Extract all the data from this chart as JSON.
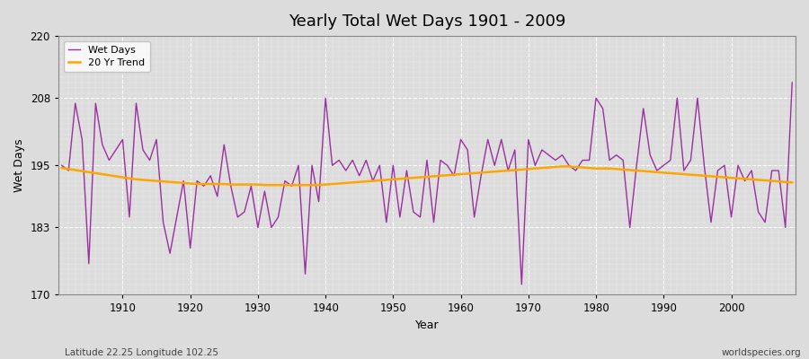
{
  "title": "Yearly Total Wet Days 1901 - 2009",
  "xlabel": "Year",
  "ylabel": "Wet Days",
  "footnote_left": "Latitude 22.25 Longitude 102.25",
  "footnote_right": "worldspecies.org",
  "line_color": "#9B30A0",
  "trend_color": "#FFA500",
  "background_color": "#DCDCDC",
  "fig_background": "#DCDCDC",
  "ylim": [
    170,
    220
  ],
  "yticks": [
    170,
    183,
    195,
    208,
    220
  ],
  "xlim_left": 1900.5,
  "xlim_right": 2009.5,
  "years": [
    1901,
    1902,
    1903,
    1904,
    1905,
    1906,
    1907,
    1908,
    1909,
    1910,
    1911,
    1912,
    1913,
    1914,
    1915,
    1916,
    1917,
    1918,
    1919,
    1920,
    1921,
    1922,
    1923,
    1924,
    1925,
    1926,
    1927,
    1928,
    1929,
    1930,
    1931,
    1932,
    1933,
    1934,
    1935,
    1936,
    1937,
    1938,
    1939,
    1940,
    1941,
    1942,
    1943,
    1944,
    1945,
    1946,
    1947,
    1948,
    1949,
    1950,
    1951,
    1952,
    1953,
    1954,
    1955,
    1956,
    1957,
    1958,
    1959,
    1960,
    1961,
    1962,
    1963,
    1964,
    1965,
    1966,
    1967,
    1968,
    1969,
    1970,
    1971,
    1972,
    1973,
    1974,
    1975,
    1976,
    1977,
    1978,
    1979,
    1980,
    1981,
    1982,
    1983,
    1984,
    1985,
    1986,
    1987,
    1988,
    1989,
    1990,
    1991,
    1992,
    1993,
    1994,
    1995,
    1996,
    1997,
    1998,
    1999,
    2000,
    2001,
    2002,
    2003,
    2004,
    2005,
    2006,
    2007,
    2008,
    2009
  ],
  "wet_days": [
    195,
    194,
    207,
    200,
    176,
    207,
    199,
    196,
    198,
    200,
    185,
    207,
    198,
    196,
    200,
    184,
    178,
    185,
    192,
    179,
    192,
    191,
    193,
    189,
    199,
    191,
    185,
    186,
    191,
    183,
    190,
    183,
    185,
    192,
    191,
    195,
    174,
    195,
    188,
    208,
    195,
    196,
    194,
    196,
    193,
    196,
    192,
    195,
    184,
    195,
    185,
    194,
    186,
    185,
    196,
    184,
    196,
    195,
    193,
    200,
    198,
    185,
    193,
    200,
    195,
    200,
    194,
    198,
    172,
    200,
    195,
    198,
    197,
    196,
    197,
    195,
    194,
    196,
    196,
    208,
    206,
    196,
    197,
    196,
    183,
    195,
    206,
    197,
    194,
    195,
    196,
    208,
    194,
    196,
    208,
    195,
    184,
    194,
    195,
    185,
    195,
    192,
    194,
    186,
    184,
    194,
    194,
    183,
    211
  ],
  "trend": [
    194.5,
    194.3,
    194.1,
    193.9,
    193.7,
    193.5,
    193.3,
    193.1,
    192.9,
    192.7,
    192.5,
    192.3,
    192.2,
    192.1,
    192.0,
    191.9,
    191.8,
    191.7,
    191.6,
    191.5,
    191.4,
    191.4,
    191.4,
    191.4,
    191.4,
    191.3,
    191.3,
    191.3,
    191.3,
    191.3,
    191.2,
    191.2,
    191.2,
    191.2,
    191.2,
    191.2,
    191.2,
    191.2,
    191.2,
    191.3,
    191.4,
    191.5,
    191.6,
    191.7,
    191.8,
    191.9,
    192.0,
    192.1,
    192.2,
    192.3,
    192.4,
    192.5,
    192.6,
    192.7,
    192.8,
    192.9,
    193.0,
    193.1,
    193.2,
    193.3,
    193.4,
    193.5,
    193.6,
    193.7,
    193.8,
    193.9,
    194.0,
    194.1,
    194.2,
    194.3,
    194.4,
    194.5,
    194.6,
    194.7,
    194.8,
    194.8,
    194.7,
    194.6,
    194.5,
    194.4,
    194.4,
    194.4,
    194.3,
    194.2,
    194.1,
    194.0,
    193.9,
    193.8,
    193.7,
    193.6,
    193.5,
    193.4,
    193.3,
    193.2,
    193.1,
    193.0,
    192.9,
    192.8,
    192.7,
    192.6,
    192.5,
    192.4,
    192.3,
    192.2,
    192.1,
    192.0,
    191.9,
    191.8,
    191.7
  ]
}
